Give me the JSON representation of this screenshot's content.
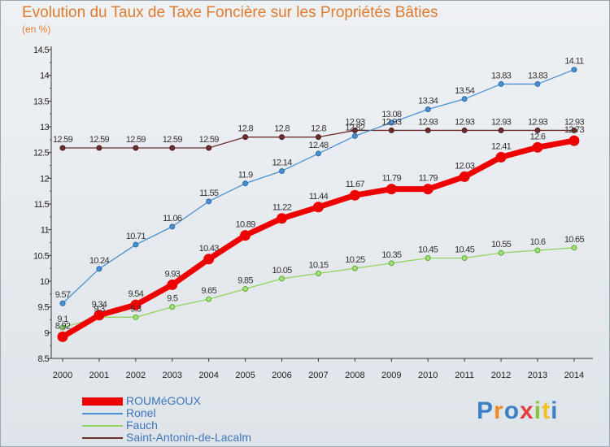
{
  "chart_data": {
    "type": "line",
    "title": "Evolution du Taux de Taxe Foncière sur les Propriétés Bâties",
    "unit_label": "(en %)",
    "x": [
      "2000",
      "2001",
      "2002",
      "2003",
      "2004",
      "2005",
      "2006",
      "2007",
      "2008",
      "2009",
      "2010",
      "2011",
      "2012",
      "2013",
      "2014"
    ],
    "ylim": [
      8.5,
      14.5
    ],
    "yticks": [
      "8.5",
      "9",
      "9.5",
      "10",
      "10.5",
      "11",
      "11.5",
      "12",
      "12.5",
      "13",
      "13.5",
      "14",
      "14.5"
    ],
    "grid": false,
    "legend_position": "bottom-left",
    "series": [
      {
        "name": "Saint-Antonin-de-Lacalm",
        "color": "#6e2e2e",
        "values": [
          12.59,
          12.59,
          12.59,
          12.59,
          12.59,
          12.8,
          12.8,
          12.8,
          12.93,
          12.93,
          12.93,
          12.93,
          12.93,
          12.93,
          12.93
        ],
        "labels": [
          "12.59",
          "12.59",
          "12.59",
          "12.59",
          "12.59",
          "12.8",
          "12.8",
          "12.8",
          "12.93",
          "12.93",
          "12.93",
          "12.93",
          "12.93",
          "12.93",
          "12.93"
        ]
      },
      {
        "name": "Fauch",
        "color": "#8fd45c",
        "values": [
          9.1,
          9.3,
          9.3,
          9.5,
          9.65,
          9.85,
          10.05,
          10.15,
          10.25,
          10.35,
          10.45,
          10.45,
          10.55,
          10.6,
          10.65
        ],
        "labels": [
          "9.1",
          "9.3",
          "9.3",
          "9.5",
          "9.65",
          "9.85",
          "10.05",
          "10.15",
          "10.25",
          "10.35",
          "10.45",
          "10.45",
          "10.55",
          "10.6",
          "10.65"
        ]
      },
      {
        "name": "Ronel",
        "color": "#4a90d0",
        "values": [
          9.57,
          10.24,
          10.71,
          11.06,
          11.55,
          11.9,
          12.14,
          12.48,
          12.82,
          13.08,
          13.34,
          13.54,
          13.83,
          13.83,
          14.11
        ],
        "labels": [
          "9.57",
          "10.24",
          "10.71",
          "11.06",
          "11.55",
          "11.9",
          "12.14",
          "12.48",
          "12.82",
          "13.08",
          "13.34",
          "13.54",
          "13.83",
          "13.83",
          "14.11"
        ]
      },
      {
        "name": "ROUMéGOUX",
        "color": "#ee0000",
        "values": [
          8.92,
          9.34,
          9.54,
          9.93,
          10.43,
          10.89,
          11.22,
          11.44,
          11.67,
          11.79,
          11.79,
          12.03,
          12.41,
          12.6,
          12.73
        ],
        "labels": [
          "8.92",
          "9.34",
          "9.54",
          "9.93",
          "10.43",
          "10.89",
          "11.22",
          "11.44",
          "11.67",
          "11.79",
          "11.79",
          "12.03",
          "12.41",
          "12.6",
          "12.73"
        ]
      }
    ],
    "legend": [
      {
        "name": "ROUMéGOUX",
        "color": "#ee0000"
      },
      {
        "name": "Ronel",
        "color": "#4a90d0"
      },
      {
        "name": "Fauch",
        "color": "#8fd45c"
      },
      {
        "name": "Saint-Antonin-de-Lacalm",
        "color": "#6e2e2e"
      }
    ]
  },
  "logo": {
    "text": "Proxiti",
    "colors": [
      "#3c7fc4",
      "#f08a24",
      "#3c7fc4",
      "#e43d3d",
      "#8ac43f",
      "#f0c020",
      "#3c7fc4"
    ]
  }
}
